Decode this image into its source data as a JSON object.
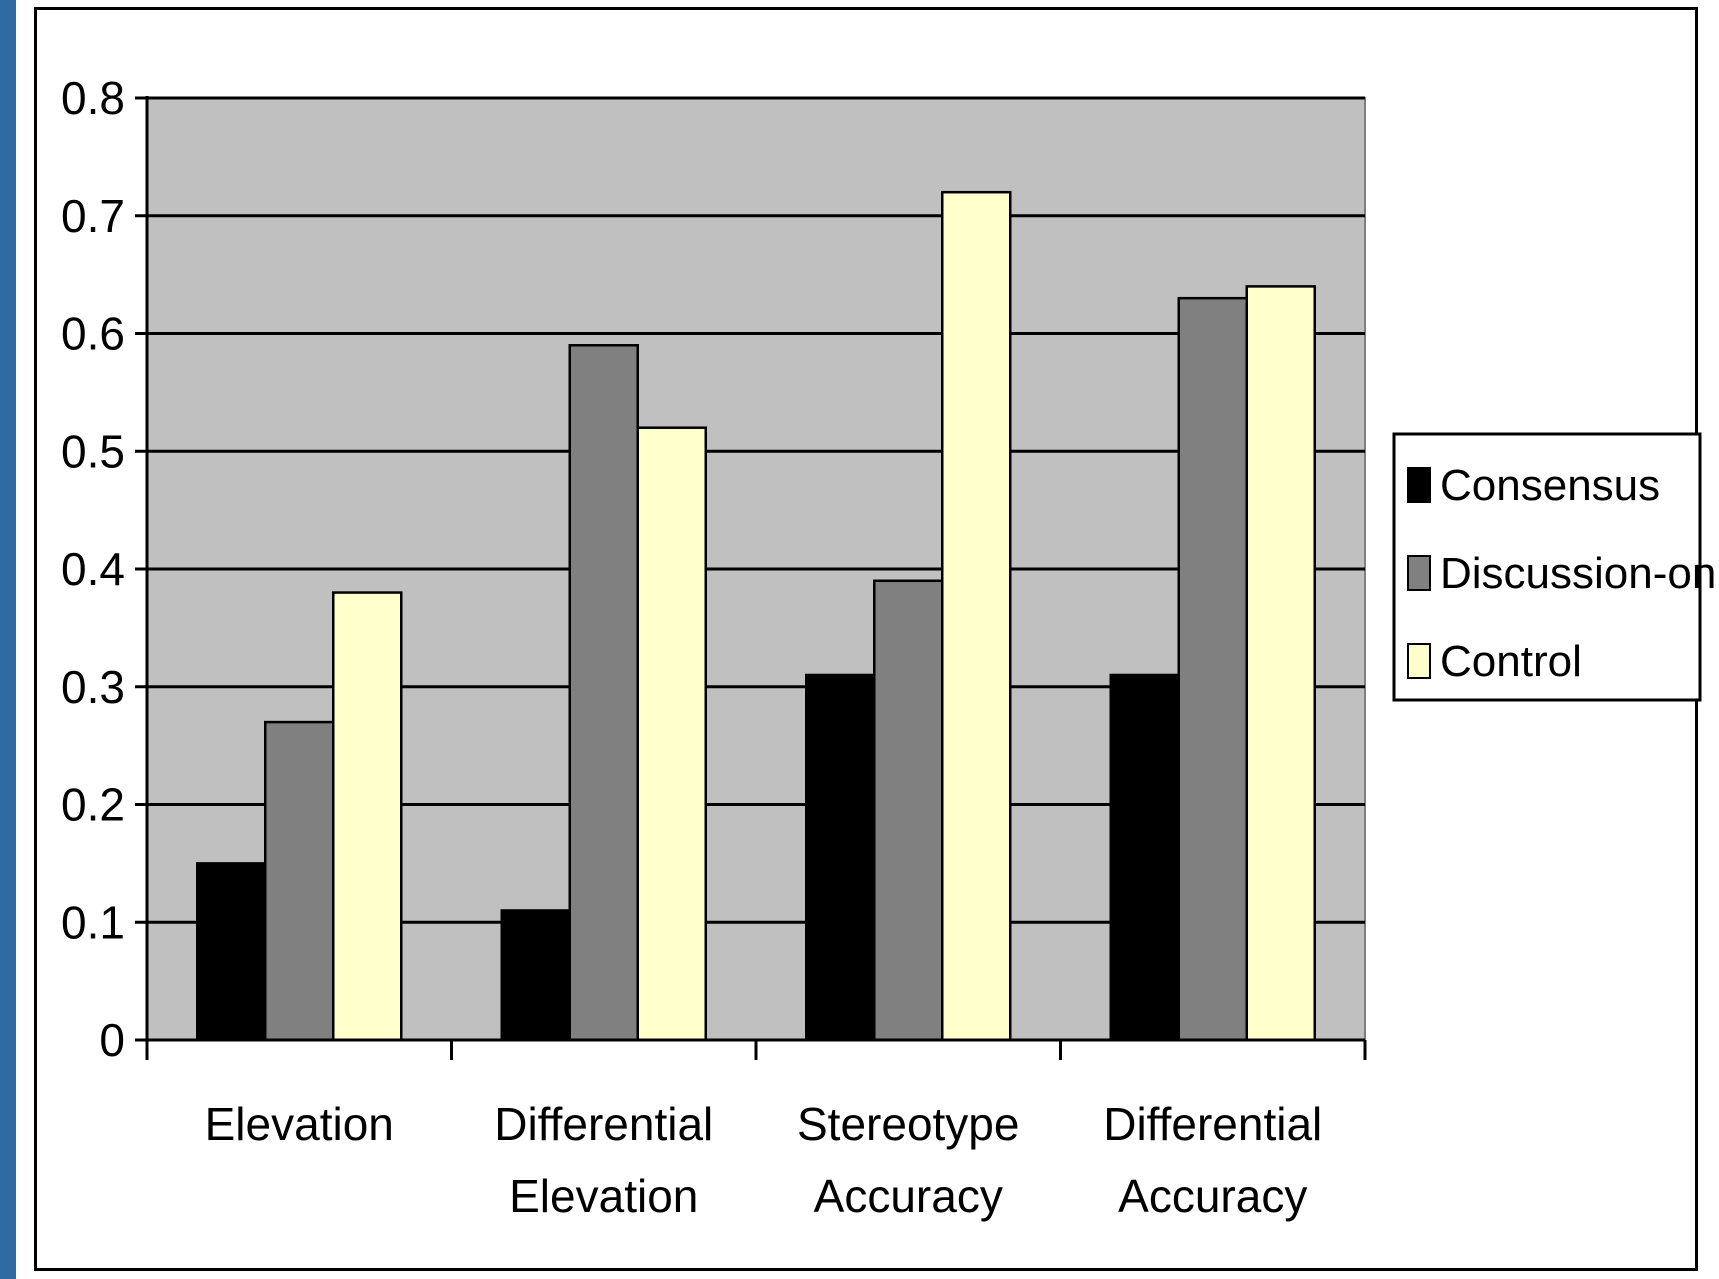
{
  "chart_data": {
    "type": "bar",
    "title": "",
    "xlabel": "",
    "ylabel": "",
    "categories": [
      [
        "Elevation"
      ],
      [
        "Differential",
        "Elevation"
      ],
      [
        "Stereotype",
        "Accuracy"
      ],
      [
        "Differential",
        "Accuracy"
      ]
    ],
    "series": [
      {
        "name": "Consensus",
        "color": "#000000",
        "values": [
          0.15,
          0.11,
          0.31,
          0.31
        ]
      },
      {
        "name": "Discussion-only",
        "color": "#808080",
        "values": [
          0.27,
          0.59,
          0.39,
          0.63
        ]
      },
      {
        "name": "Control",
        "color": "#ffffcc",
        "values": [
          0.38,
          0.52,
          0.72,
          0.64
        ]
      }
    ],
    "ylim": [
      0,
      0.8
    ],
    "yticks": [
      "0",
      "0.1",
      "0.2",
      "0.3",
      "0.4",
      "0.5",
      "0.6",
      "0.7",
      "0.8"
    ],
    "grid": true,
    "plot_background": "#c0c0c0",
    "legend_position": "right"
  }
}
